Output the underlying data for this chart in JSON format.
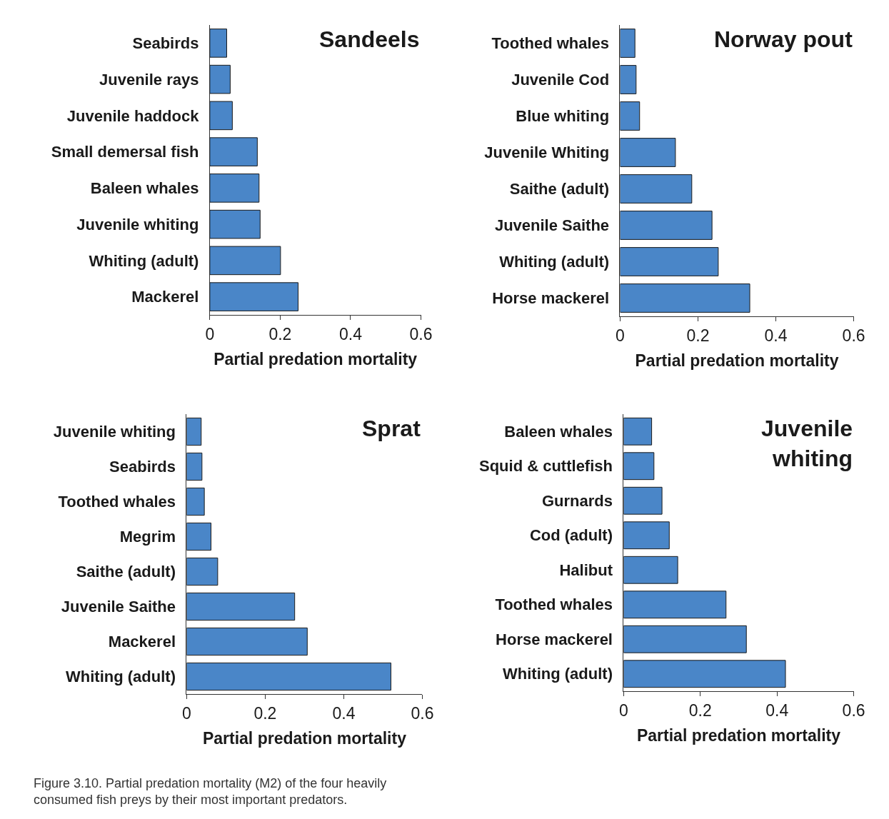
{
  "chart_data": [
    {
      "type": "bar",
      "orientation": "horizontal",
      "title": "Sandeels",
      "xlabel": "Partial predation mortality",
      "categories": [
        "Seabirds",
        "Juvenile rays",
        "Juvenile haddock",
        "Small demersal fish",
        "Baleen whales",
        "Juvenile whiting",
        "Whiting (adult)",
        "Mackerel"
      ],
      "values": [
        0.048,
        0.058,
        0.064,
        0.135,
        0.14,
        0.143,
        0.201,
        0.251
      ],
      "color": "#4a86c8",
      "xlim": [
        0,
        0.6
      ],
      "xticks": [
        0,
        0.2,
        0.4,
        0.6
      ],
      "legend": false
    },
    {
      "type": "bar",
      "orientation": "horizontal",
      "title": "Norway pout",
      "xlabel": "Partial predation mortality",
      "categories": [
        "Toothed whales",
        "Juvenile Cod",
        "Blue whiting",
        "Juvenile Whiting",
        "Saithe (adult)",
        "Juvenile Saithe",
        "Whiting (adult)",
        "Horse mackerel"
      ],
      "values": [
        0.038,
        0.041,
        0.05,
        0.142,
        0.184,
        0.236,
        0.252,
        0.333
      ],
      "color": "#4a86c8",
      "xlim": [
        0,
        0.6
      ],
      "xticks": [
        0,
        0.2,
        0.4,
        0.6
      ],
      "legend": false
    },
    {
      "type": "bar",
      "orientation": "horizontal",
      "title": "Sprat",
      "xlabel": "Partial predation mortality",
      "categories": [
        "Juvenile whiting",
        "Seabirds",
        "Toothed whales",
        "Megrim",
        "Saithe (adult)",
        "Juvenile Saithe",
        "Mackerel",
        "Whiting (adult)"
      ],
      "values": [
        0.037,
        0.039,
        0.045,
        0.062,
        0.079,
        0.275,
        0.307,
        0.52
      ],
      "color": "#4a86c8",
      "xlim": [
        0,
        0.6
      ],
      "xticks": [
        0,
        0.2,
        0.4,
        0.6
      ],
      "legend": false,
      "annotations": [
        "Figure 3.10. Partial predation mortality (M2) of the four heavily consumed fish preys by their most important predators."
      ]
    },
    {
      "type": "bar",
      "orientation": "horizontal",
      "title": "Juvenile whiting",
      "xlabel": "Partial predation mortality",
      "categories": [
        "Baleen whales",
        "Squid & cuttlefish",
        "Gurnards",
        "Cod (adult)",
        "Halibut",
        "Toothed whales",
        "Horse mackerel",
        "Whiting (adult)"
      ],
      "values": [
        0.073,
        0.079,
        0.1,
        0.119,
        0.141,
        0.267,
        0.32,
        0.422
      ],
      "color": "#4a86c8",
      "xlim": [
        0,
        0.6
      ],
      "xticks": [
        0,
        0.2,
        0.4,
        0.6
      ],
      "legend": false
    }
  ]
}
